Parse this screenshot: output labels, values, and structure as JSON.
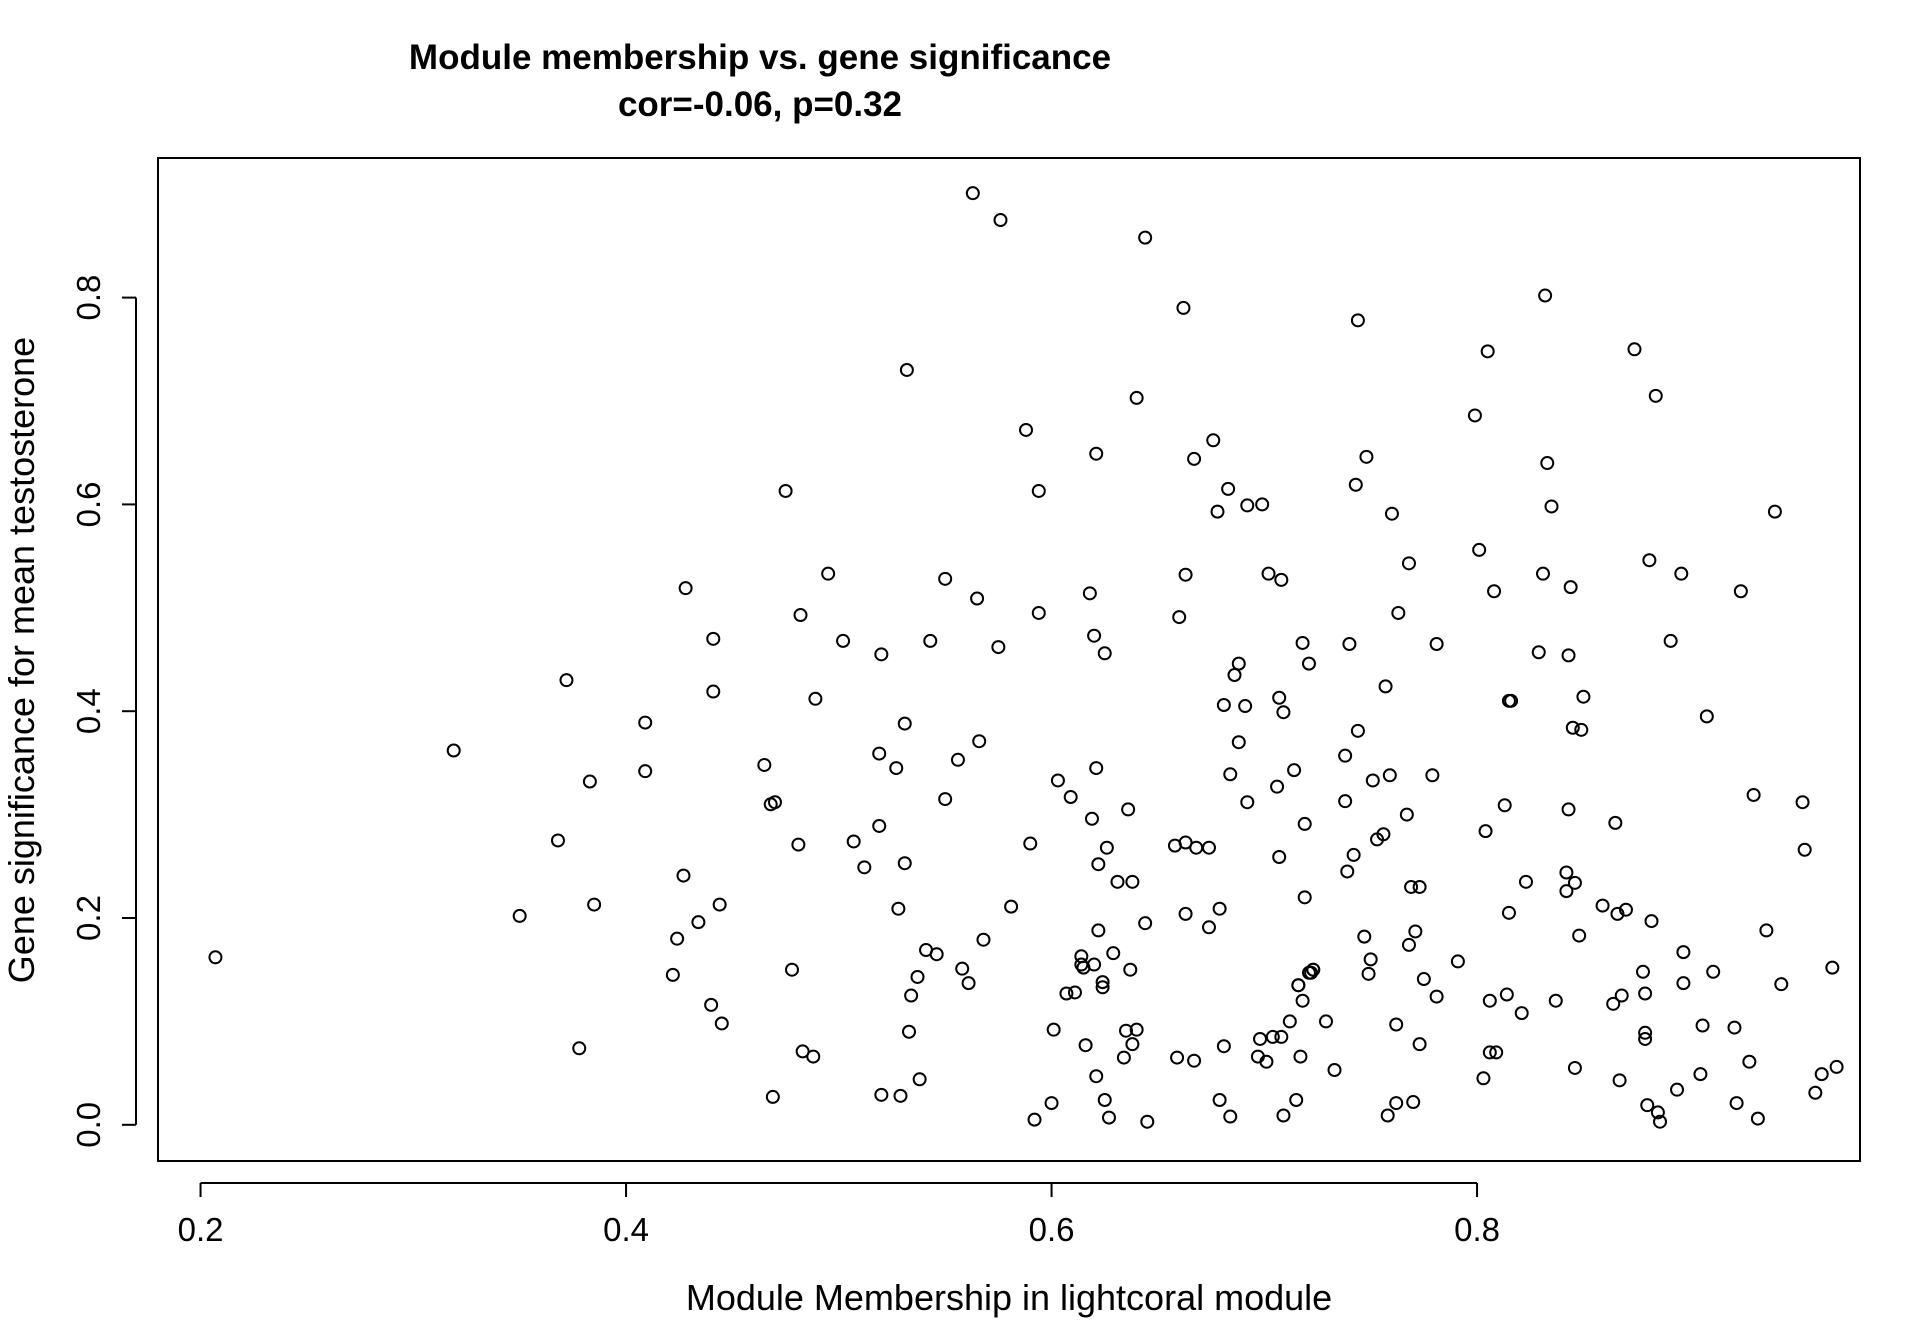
{
  "chart_data": {
    "type": "scatter",
    "title": "Module membership vs. gene significance",
    "subtitle": "cor=-0.06, p=0.32",
    "xlabel": "Module Membership in lightcoral module",
    "ylabel": "Gene significance for mean testosterone",
    "xlim": [
      0.18,
      0.98
    ],
    "ylim": [
      -0.035,
      0.935
    ],
    "xticks": [
      0.2,
      0.4,
      0.6,
      0.8
    ],
    "yticks": [
      0.0,
      0.2,
      0.4,
      0.6,
      0.8
    ],
    "xtick_labels": [
      "0.2",
      "0.4",
      "0.6",
      "0.8"
    ],
    "ytick_labels": [
      "0.0",
      "0.2",
      "0.4",
      "0.6",
      "0.8"
    ],
    "grid": false,
    "marker": "open-circle",
    "point_color": "#000000",
    "points": [
      [
        0.207,
        0.162
      ],
      [
        0.319,
        0.362
      ],
      [
        0.35,
        0.202
      ],
      [
        0.368,
        0.275
      ],
      [
        0.372,
        0.43
      ],
      [
        0.378,
        0.074
      ],
      [
        0.383,
        0.332
      ],
      [
        0.385,
        0.213
      ],
      [
        0.409,
        0.389
      ],
      [
        0.409,
        0.342
      ],
      [
        0.422,
        0.145
      ],
      [
        0.424,
        0.18
      ],
      [
        0.427,
        0.241
      ],
      [
        0.428,
        0.519
      ],
      [
        0.434,
        0.196
      ],
      [
        0.44,
        0.116
      ],
      [
        0.441,
        0.47
      ],
      [
        0.441,
        0.419
      ],
      [
        0.444,
        0.213
      ],
      [
        0.445,
        0.098
      ],
      [
        0.465,
        0.348
      ],
      [
        0.468,
        0.31
      ],
      [
        0.469,
        0.027
      ],
      [
        0.47,
        0.312
      ],
      [
        0.475,
        0.613
      ],
      [
        0.478,
        0.15
      ],
      [
        0.481,
        0.271
      ],
      [
        0.482,
        0.493
      ],
      [
        0.483,
        0.071
      ],
      [
        0.488,
        0.066
      ],
      [
        0.489,
        0.412
      ],
      [
        0.495,
        0.533
      ],
      [
        0.502,
        0.468
      ],
      [
        0.507,
        0.274
      ],
      [
        0.512,
        0.249
      ],
      [
        0.519,
        0.289
      ],
      [
        0.519,
        0.359
      ],
      [
        0.52,
        0.455
      ],
      [
        0.52,
        0.029
      ],
      [
        0.527,
        0.345
      ],
      [
        0.528,
        0.209
      ],
      [
        0.529,
        0.028
      ],
      [
        0.531,
        0.253
      ],
      [
        0.531,
        0.388
      ],
      [
        0.532,
        0.73
      ],
      [
        0.533,
        0.09
      ],
      [
        0.534,
        0.125
      ],
      [
        0.537,
        0.143
      ],
      [
        0.538,
        0.044
      ],
      [
        0.541,
        0.169
      ],
      [
        0.543,
        0.468
      ],
      [
        0.546,
        0.165
      ],
      [
        0.55,
        0.315
      ],
      [
        0.55,
        0.528
      ],
      [
        0.556,
        0.353
      ],
      [
        0.558,
        0.151
      ],
      [
        0.561,
        0.137
      ],
      [
        0.563,
        0.901
      ],
      [
        0.565,
        0.509
      ],
      [
        0.566,
        0.371
      ],
      [
        0.568,
        0.179
      ],
      [
        0.575,
        0.462
      ],
      [
        0.576,
        0.875
      ],
      [
        0.581,
        0.211
      ],
      [
        0.588,
        0.672
      ],
      [
        0.59,
        0.272
      ],
      [
        0.592,
        0.005
      ],
      [
        0.594,
        0.613
      ],
      [
        0.594,
        0.495
      ],
      [
        0.6,
        0.021
      ],
      [
        0.601,
        0.092
      ],
      [
        0.603,
        0.333
      ],
      [
        0.607,
        0.127
      ],
      [
        0.609,
        0.317
      ],
      [
        0.611,
        0.128
      ],
      [
        0.614,
        0.155
      ],
      [
        0.614,
        0.163
      ],
      [
        0.615,
        0.152
      ],
      [
        0.616,
        0.077
      ],
      [
        0.618,
        0.514
      ],
      [
        0.619,
        0.296
      ],
      [
        0.62,
        0.155
      ],
      [
        0.62,
        0.473
      ],
      [
        0.621,
        0.649
      ],
      [
        0.621,
        0.345
      ],
      [
        0.621,
        0.047
      ],
      [
        0.622,
        0.252
      ],
      [
        0.622,
        0.188
      ],
      [
        0.624,
        0.138
      ],
      [
        0.624,
        0.133
      ],
      [
        0.625,
        0.456
      ],
      [
        0.625,
        0.024
      ],
      [
        0.626,
        0.268
      ],
      [
        0.627,
        0.007
      ],
      [
        0.629,
        0.166
      ],
      [
        0.631,
        0.235
      ],
      [
        0.634,
        0.065
      ],
      [
        0.635,
        0.091
      ],
      [
        0.636,
        0.305
      ],
      [
        0.637,
        0.15
      ],
      [
        0.638,
        0.235
      ],
      [
        0.638,
        0.078
      ],
      [
        0.64,
        0.703
      ],
      [
        0.64,
        0.092
      ],
      [
        0.644,
        0.195
      ],
      [
        0.644,
        0.858
      ],
      [
        0.645,
        0.003
      ],
      [
        0.658,
        0.27
      ],
      [
        0.659,
        0.065
      ],
      [
        0.66,
        0.491
      ],
      [
        0.662,
        0.79
      ],
      [
        0.663,
        0.204
      ],
      [
        0.663,
        0.532
      ],
      [
        0.663,
        0.273
      ],
      [
        0.667,
        0.062
      ],
      [
        0.667,
        0.644
      ],
      [
        0.668,
        0.268
      ],
      [
        0.674,
        0.268
      ],
      [
        0.674,
        0.191
      ],
      [
        0.676,
        0.662
      ],
      [
        0.678,
        0.593
      ],
      [
        0.679,
        0.209
      ],
      [
        0.679,
        0.024
      ],
      [
        0.681,
        0.076
      ],
      [
        0.681,
        0.406
      ],
      [
        0.683,
        0.615
      ],
      [
        0.684,
        0.008
      ],
      [
        0.684,
        0.339
      ],
      [
        0.686,
        0.435
      ],
      [
        0.688,
        0.446
      ],
      [
        0.688,
        0.37
      ],
      [
        0.691,
        0.405
      ],
      [
        0.692,
        0.312
      ],
      [
        0.692,
        0.599
      ],
      [
        0.697,
        0.066
      ],
      [
        0.698,
        0.083
      ],
      [
        0.699,
        0.6
      ],
      [
        0.701,
        0.061
      ],
      [
        0.702,
        0.533
      ],
      [
        0.704,
        0.085
      ],
      [
        0.706,
        0.327
      ],
      [
        0.707,
        0.259
      ],
      [
        0.707,
        0.413
      ],
      [
        0.708,
        0.527
      ],
      [
        0.708,
        0.085
      ],
      [
        0.709,
        0.399
      ],
      [
        0.709,
        0.009
      ],
      [
        0.712,
        0.1
      ],
      [
        0.714,
        0.343
      ],
      [
        0.715,
        0.024
      ],
      [
        0.716,
        0.135
      ],
      [
        0.716,
        0.135
      ],
      [
        0.717,
        0.066
      ],
      [
        0.718,
        0.466
      ],
      [
        0.718,
        0.12
      ],
      [
        0.719,
        0.22
      ],
      [
        0.719,
        0.291
      ],
      [
        0.721,
        0.446
      ],
      [
        0.721,
        0.147
      ],
      [
        0.722,
        0.147
      ],
      [
        0.723,
        0.15
      ],
      [
        0.723,
        0.15
      ],
      [
        0.729,
        0.1
      ],
      [
        0.733,
        0.053
      ],
      [
        0.738,
        0.313
      ],
      [
        0.738,
        0.357
      ],
      [
        0.739,
        0.245
      ],
      [
        0.74,
        0.465
      ],
      [
        0.742,
        0.261
      ],
      [
        0.743,
        0.619
      ],
      [
        0.744,
        0.381
      ],
      [
        0.744,
        0.778
      ],
      [
        0.747,
        0.182
      ],
      [
        0.748,
        0.646
      ],
      [
        0.749,
        0.146
      ],
      [
        0.75,
        0.16
      ],
      [
        0.751,
        0.333
      ],
      [
        0.753,
        0.276
      ],
      [
        0.756,
        0.281
      ],
      [
        0.757,
        0.424
      ],
      [
        0.758,
        0.009
      ],
      [
        0.759,
        0.338
      ],
      [
        0.76,
        0.591
      ],
      [
        0.762,
        0.097
      ],
      [
        0.762,
        0.021
      ],
      [
        0.763,
        0.495
      ],
      [
        0.767,
        0.3
      ],
      [
        0.768,
        0.543
      ],
      [
        0.768,
        0.174
      ],
      [
        0.769,
        0.23
      ],
      [
        0.77,
        0.022
      ],
      [
        0.771,
        0.187
      ],
      [
        0.773,
        0.23
      ],
      [
        0.773,
        0.078
      ],
      [
        0.775,
        0.141
      ],
      [
        0.779,
        0.338
      ],
      [
        0.781,
        0.465
      ],
      [
        0.781,
        0.124
      ],
      [
        0.791,
        0.158
      ],
      [
        0.799,
        0.686
      ],
      [
        0.801,
        0.556
      ],
      [
        0.803,
        0.045
      ],
      [
        0.804,
        0.284
      ],
      [
        0.805,
        0.748
      ],
      [
        0.806,
        0.12
      ],
      [
        0.806,
        0.07
      ],
      [
        0.808,
        0.516
      ],
      [
        0.809,
        0.07
      ],
      [
        0.813,
        0.309
      ],
      [
        0.814,
        0.126
      ],
      [
        0.815,
        0.205
      ],
      [
        0.815,
        0.41
      ],
      [
        0.816,
        0.41
      ],
      [
        0.821,
        0.108
      ],
      [
        0.823,
        0.235
      ],
      [
        0.829,
        0.457
      ],
      [
        0.831,
        0.533
      ],
      [
        0.832,
        0.802
      ],
      [
        0.833,
        0.64
      ],
      [
        0.835,
        0.598
      ],
      [
        0.837,
        0.12
      ],
      [
        0.842,
        0.244
      ],
      [
        0.842,
        0.226
      ],
      [
        0.843,
        0.454
      ],
      [
        0.843,
        0.305
      ],
      [
        0.844,
        0.52
      ],
      [
        0.845,
        0.384
      ],
      [
        0.846,
        0.234
      ],
      [
        0.846,
        0.055
      ],
      [
        0.848,
        0.183
      ],
      [
        0.849,
        0.382
      ],
      [
        0.85,
        0.414
      ],
      [
        0.859,
        0.212
      ],
      [
        0.864,
        0.117
      ],
      [
        0.865,
        0.292
      ],
      [
        0.866,
        0.204
      ],
      [
        0.867,
        0.043
      ],
      [
        0.868,
        0.125
      ],
      [
        0.87,
        0.208
      ],
      [
        0.874,
        0.75
      ],
      [
        0.878,
        0.148
      ],
      [
        0.879,
        0.083
      ],
      [
        0.879,
        0.089
      ],
      [
        0.879,
        0.127
      ],
      [
        0.88,
        0.019
      ],
      [
        0.881,
        0.546
      ],
      [
        0.882,
        0.197
      ],
      [
        0.884,
        0.705
      ],
      [
        0.885,
        0.012
      ],
      [
        0.886,
        0.003
      ],
      [
        0.891,
        0.468
      ],
      [
        0.894,
        0.034
      ],
      [
        0.896,
        0.533
      ],
      [
        0.897,
        0.137
      ],
      [
        0.897,
        0.167
      ],
      [
        0.905,
        0.049
      ],
      [
        0.906,
        0.096
      ],
      [
        0.908,
        0.395
      ],
      [
        0.911,
        0.148
      ],
      [
        0.921,
        0.094
      ],
      [
        0.922,
        0.021
      ],
      [
        0.924,
        0.516
      ],
      [
        0.928,
        0.061
      ],
      [
        0.93,
        0.319
      ],
      [
        0.932,
        0.006
      ],
      [
        0.936,
        0.188
      ],
      [
        0.94,
        0.593
      ],
      [
        0.943,
        0.136
      ],
      [
        0.953,
        0.312
      ],
      [
        0.954,
        0.266
      ],
      [
        0.959,
        0.031
      ],
      [
        0.962,
        0.049
      ],
      [
        0.967,
        0.152
      ],
      [
        0.969,
        0.056
      ]
    ]
  }
}
